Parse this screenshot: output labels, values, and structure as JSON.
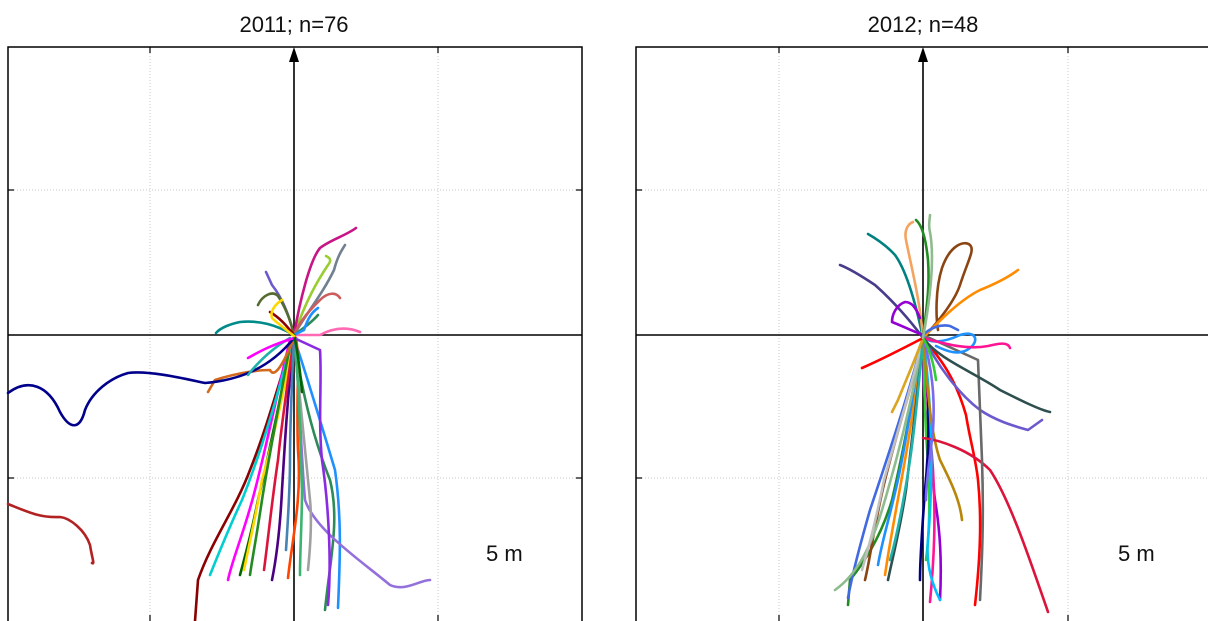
{
  "panels": [
    {
      "id": "left",
      "title": "2011; n=76",
      "scale_label": "5 m",
      "track_colors": [
        "#8b0000",
        "#2e8b57",
        "#1e90ff",
        "#ff00ff",
        "#006400",
        "#ffd700",
        "#4b0082",
        "#ff4500",
        "#00ced1",
        "#9370db",
        "#a0a0a0",
        "#228b22",
        "#dc143c",
        "#3cb371",
        "#4682b4",
        "#8a2be2",
        "#d2691e",
        "#00008b",
        "#b22222",
        "#20b2aa",
        "#ff69b4",
        "#708090",
        "#9acd32",
        "#6a5acd",
        "#c71585",
        "#008b8b",
        "#556b2f",
        "#cd5c5c"
      ]
    },
    {
      "id": "right",
      "title": "2012; n=48",
      "scale_label": "5 m",
      "track_colors": [
        "#228b22",
        "#8b4513",
        "#ff8c00",
        "#9400d3",
        "#1e90ff",
        "#ff1493",
        "#2f4f4f",
        "#ff0000",
        "#4169e1",
        "#32cd32",
        "#8fbc8f",
        "#000080",
        "#c0c0c0",
        "#20b2aa",
        "#6a5acd",
        "#00bfff",
        "#b8860b",
        "#dc143c",
        "#696969",
        "#7b68ee",
        "#daa520",
        "#483d8b",
        "#008080",
        "#f4a460"
      ]
    }
  ]
}
